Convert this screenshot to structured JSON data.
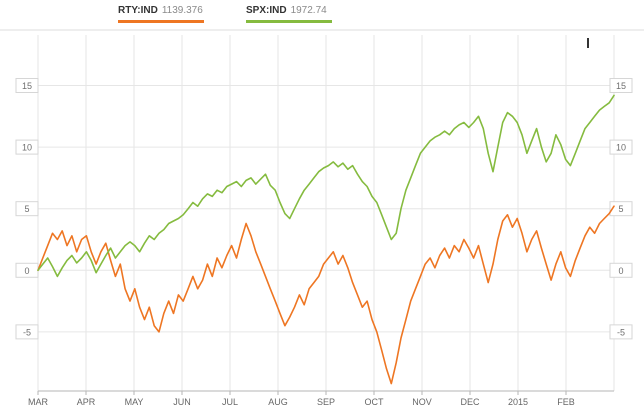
{
  "chart_data": {
    "type": "line",
    "title": "",
    "x_axis": {
      "labels": [
        "MAR",
        "APR",
        "MAY",
        "JUN",
        "JUL",
        "AUG",
        "SEP",
        "OCT",
        "NOV",
        "DEC",
        "2015",
        "FEB"
      ]
    },
    "y_axis": {
      "ticks": [
        -5,
        0,
        5,
        10,
        15
      ],
      "range": [
        -9.8,
        19.1
      ],
      "unit": "% change",
      "labels_both_sides": true
    },
    "grid": true,
    "legend_position": "top",
    "colors": {
      "grid": "#e6e6e6",
      "axis": "#b5b5b5",
      "tick_label": "#6e6e6e",
      "month_label": "#666666",
      "separator": "#dddddd"
    },
    "series": [
      {
        "name": "RTY:IND",
        "value_label": "1139.376",
        "color": "#ee7623",
        "values": [
          0,
          1.0,
          2.0,
          3.0,
          2.5,
          3.2,
          2.0,
          2.8,
          1.5,
          2.5,
          2.8,
          1.5,
          0.5,
          1.5,
          2.2,
          0.8,
          -0.5,
          0.5,
          -1.5,
          -2.5,
          -1.5,
          -3.0,
          -4.0,
          -3.0,
          -4.5,
          -5.0,
          -3.5,
          -2.5,
          -3.5,
          -2.0,
          -2.5,
          -1.5,
          -0.5,
          -1.5,
          -0.8,
          0.5,
          -0.5,
          1.0,
          0.2,
          1.2,
          2.0,
          1.0,
          2.5,
          3.8,
          2.8,
          1.5,
          0.5,
          -0.5,
          -1.5,
          -2.5,
          -3.5,
          -4.5,
          -3.8,
          -3.0,
          -2.0,
          -2.8,
          -1.5,
          -1.0,
          -0.5,
          0.5,
          1.0,
          1.5,
          0.5,
          1.2,
          0.2,
          -1.0,
          -2.0,
          -3.0,
          -2.5,
          -4.0,
          -5.0,
          -6.5,
          -8.0,
          -9.2,
          -7.5,
          -5.5,
          -4.0,
          -2.5,
          -1.5,
          -0.5,
          0.5,
          1.0,
          0.2,
          1.2,
          1.8,
          1.0,
          2.0,
          1.5,
          2.5,
          1.8,
          1.0,
          2.0,
          0.5,
          -1.0,
          0.5,
          2.5,
          4.0,
          4.5,
          3.5,
          4.2,
          3.0,
          1.5,
          2.5,
          3.2,
          1.8,
          0.5,
          -0.8,
          0.5,
          1.5,
          0.2,
          -0.5,
          0.8,
          1.8,
          2.8,
          3.5,
          3.0,
          3.8,
          4.2,
          4.6,
          5.2
        ]
      },
      {
        "name": "SPX:IND",
        "value_label": "1972.74",
        "color": "#85bb3f",
        "values": [
          0,
          0.5,
          1.0,
          0.3,
          -0.5,
          0.2,
          0.8,
          1.2,
          0.6,
          1.0,
          1.5,
          0.8,
          -0.2,
          0.5,
          1.2,
          1.8,
          1.0,
          1.5,
          2.0,
          2.3,
          2.0,
          1.5,
          2.2,
          2.8,
          2.5,
          3.0,
          3.3,
          3.8,
          4.0,
          4.2,
          4.5,
          5.0,
          5.5,
          5.2,
          5.8,
          6.2,
          6.0,
          6.5,
          6.3,
          6.8,
          7.0,
          7.2,
          6.8,
          7.3,
          7.5,
          7.0,
          7.4,
          7.8,
          6.9,
          6.5,
          5.5,
          4.6,
          4.2,
          5.0,
          5.8,
          6.5,
          7.0,
          7.5,
          8.0,
          8.3,
          8.5,
          8.8,
          8.4,
          8.7,
          8.2,
          8.5,
          7.8,
          7.2,
          6.8,
          6.0,
          5.5,
          4.5,
          3.5,
          2.5,
          3.0,
          5.0,
          6.5,
          7.5,
          8.5,
          9.5,
          10.0,
          10.5,
          10.8,
          11.0,
          11.3,
          11.0,
          11.5,
          11.8,
          12.0,
          11.6,
          12.0,
          12.5,
          11.5,
          9.5,
          8.0,
          10.0,
          12.0,
          12.8,
          12.5,
          12.0,
          11.0,
          9.5,
          10.5,
          11.5,
          10.0,
          8.8,
          9.5,
          11.0,
          10.2,
          9.0,
          8.5,
          9.5,
          10.5,
          11.5,
          12.0,
          12.5,
          13.0,
          13.3,
          13.6,
          14.2
        ]
      }
    ]
  }
}
